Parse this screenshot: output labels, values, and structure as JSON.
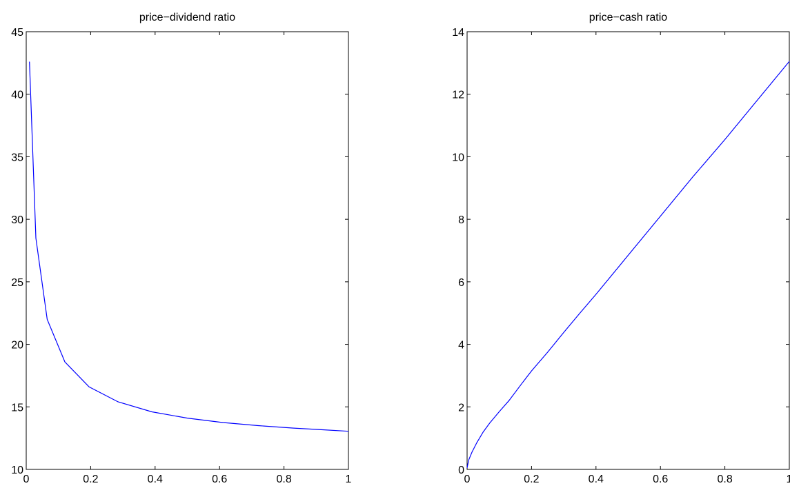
{
  "chart_data": [
    {
      "type": "line",
      "title": "price−dividend ratio",
      "xlabel": "",
      "ylabel": "",
      "xlim": [
        0,
        1
      ],
      "ylim": [
        10,
        45
      ],
      "xticks": [
        0,
        0.2,
        0.4,
        0.6,
        0.8,
        1
      ],
      "xtick_labels": [
        "0",
        "0.2",
        "0.4",
        "0.6",
        "0.8",
        "1"
      ],
      "yticks": [
        10,
        15,
        20,
        25,
        30,
        35,
        40,
        45
      ],
      "ytick_labels": [
        "10",
        "15",
        "20",
        "25",
        "30",
        "35",
        "40",
        "45"
      ],
      "grid": false,
      "line_color": "#0000ff",
      "series": [
        {
          "x": [
            0.01,
            0.03,
            0.065,
            0.12,
            0.195,
            0.285,
            0.39,
            0.5,
            0.61,
            0.72,
            0.83,
            0.92,
            1.0
          ],
          "y": [
            42.6,
            28.5,
            22.0,
            18.6,
            16.6,
            15.4,
            14.6,
            14.1,
            13.75,
            13.5,
            13.3,
            13.17,
            13.05
          ]
        }
      ]
    },
    {
      "type": "line",
      "title": "price−cash ratio",
      "xlabel": "",
      "ylabel": "",
      "xlim": [
        0,
        1
      ],
      "ylim": [
        0,
        14
      ],
      "xticks": [
        0,
        0.2,
        0.4,
        0.6,
        0.8,
        1
      ],
      "xtick_labels": [
        "0",
        "0.2",
        "0.4",
        "0.6",
        "0.8",
        "1"
      ],
      "yticks": [
        0,
        2,
        4,
        6,
        8,
        10,
        12,
        14
      ],
      "ytick_labels": [
        "0",
        "2",
        "4",
        "6",
        "8",
        "10",
        "12",
        "14"
      ],
      "grid": false,
      "line_color": "#0000ff",
      "series": [
        {
          "x": [
            0.0,
            0.005,
            0.015,
            0.03,
            0.05,
            0.07,
            0.1,
            0.13,
            0.17,
            0.2,
            0.25,
            0.3,
            0.35,
            0.4,
            0.5,
            0.6,
            0.7,
            0.8,
            0.9,
            1.0
          ],
          "y": [
            0.05,
            0.3,
            0.55,
            0.85,
            1.2,
            1.48,
            1.85,
            2.2,
            2.75,
            3.15,
            3.75,
            4.38,
            5.0,
            5.6,
            6.85,
            8.1,
            9.35,
            10.55,
            11.8,
            13.05
          ]
        }
      ]
    }
  ]
}
